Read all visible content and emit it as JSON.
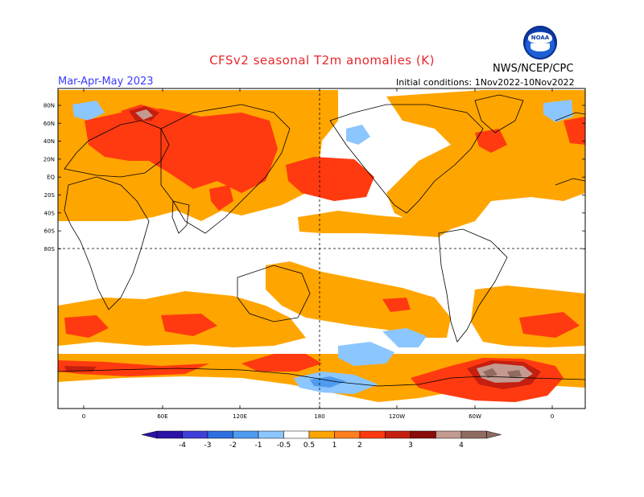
{
  "header": {
    "title": "CFSv2 seasonal T2m anomalies (K)",
    "season": "Mar-Apr-May 2023",
    "agency": "NWS/NCEP/CPC",
    "initial_conditions": "Initial conditions: 1Nov2022-10Nov2022",
    "logo_text": "NOAA"
  },
  "map": {
    "lat_labels": [
      "80N",
      "60N",
      "40N",
      "20N",
      "EQ",
      "20S",
      "40S",
      "60S",
      "80S"
    ],
    "lon_labels": [
      "0",
      "60E",
      "120E",
      "180",
      "120W",
      "60W",
      "0"
    ]
  },
  "colorbar": {
    "labels": [
      "-4",
      "-3",
      "-2",
      "-1",
      "-0.5",
      "0.5",
      "1",
      "2",
      "3",
      "4"
    ],
    "colors": [
      "#2b13a8",
      "#3f3fd8",
      "#2f6fe0",
      "#4f9bf0",
      "#8cc6ff",
      "#ffffff",
      "#ffa500",
      "#ff7f1f",
      "#ff3a10",
      "#c41f0f",
      "#8b0a0a",
      "#c49a90",
      "#8f6b60"
    ]
  }
}
